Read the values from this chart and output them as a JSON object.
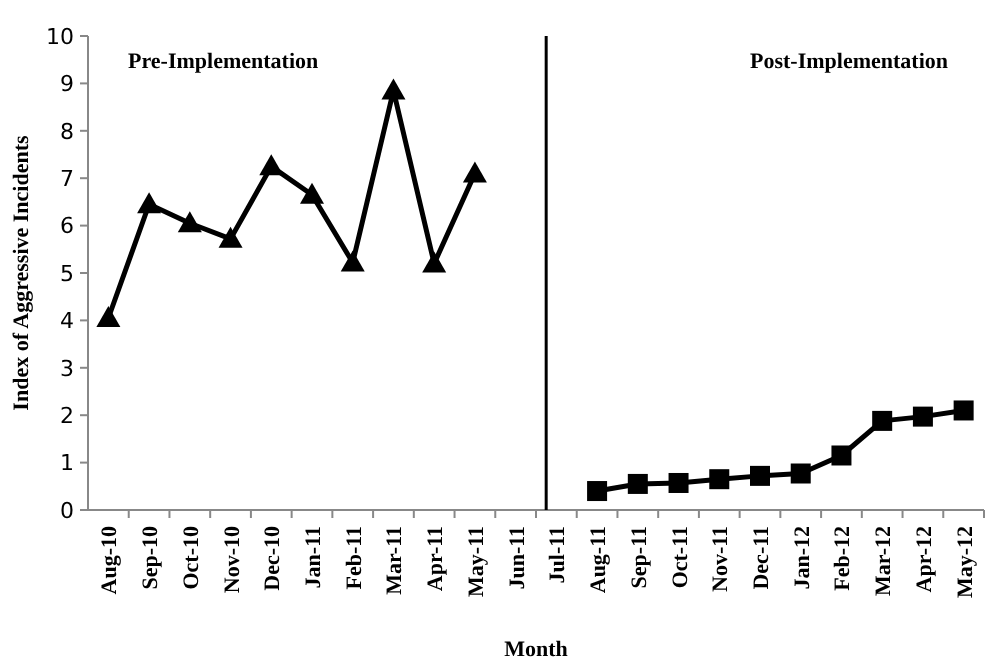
{
  "chart_data": {
    "type": "line",
    "xlabel": "Month",
    "ylabel": "Index of Aggressive Incidents",
    "categories": [
      "Aug-10",
      "Sep-10",
      "Oct-10",
      "Nov-10",
      "Dec-10",
      "Jan-11",
      "Feb-11",
      "Mar-11",
      "Apr-11",
      "May-11",
      "Jun-11",
      "Jul-11",
      "Aug-11",
      "Sep-11",
      "Oct-11",
      "Nov-11",
      "Dec-11",
      "Jan-12",
      "Feb-12",
      "Mar-12",
      "Apr-12",
      "May-12"
    ],
    "series": [
      {
        "color": "#000000",
        "marker": "triangle",
        "values": [
          4.05,
          6.45,
          6.05,
          5.72,
          7.25,
          6.65,
          5.22,
          8.85,
          5.2,
          7.1,
          null,
          null,
          null,
          null,
          null,
          null,
          null,
          null,
          null,
          null,
          null,
          null
        ]
      },
      {
        "color": "#000000",
        "marker": "square",
        "values": [
          null,
          null,
          null,
          null,
          null,
          null,
          null,
          null,
          null,
          null,
          null,
          null,
          0.4,
          0.55,
          0.57,
          0.65,
          0.72,
          0.77,
          1.15,
          1.88,
          1.97,
          2.1
        ]
      }
    ],
    "ylim": [
      0,
      10
    ],
    "yticks": [
      0,
      1,
      2,
      3,
      4,
      5,
      6,
      7,
      8,
      9,
      10
    ],
    "grid": false,
    "ref_lines": [
      {
        "axis": "x",
        "value": "Jul-11",
        "color": "#000000"
      }
    ],
    "annotations": [
      "Pre-Implementation",
      "Post-Implementation"
    ]
  }
}
